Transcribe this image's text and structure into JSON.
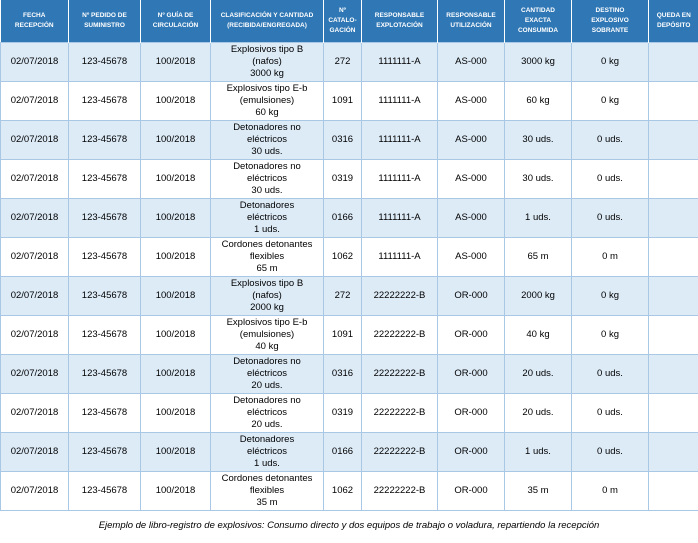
{
  "table": {
    "headers": [
      "FECHA\nRECEPCIÓN",
      "Nº PEDIDO DE\nSUMINISTRO",
      "Nº GUÍA DE\nCIRCULACIÓN",
      "CLASIFICACIÓN Y CANTIDAD\n(RECIBIDA/ENGREGADA)",
      "Nº\nCATALO-\nGACIÓN",
      "RESPONSABLE\nEXPLOTACIÓN",
      "RESPONSABLE\nUTILIZACIÓN",
      "CANTIDAD\nEXACTA\nCONSUMIDA",
      "DESTINO\nEXPLOSIVO\nSOBRANTE",
      "QUEDA EN\nDEPÓSITO"
    ],
    "rows": [
      [
        "02/07/2018",
        "123-45678",
        "100/2018",
        "Explosivos tipo B\n(nafos)\n3000 kg",
        "272",
        "1111111-A",
        "AS-000",
        "3000 kg",
        "0 kg",
        ""
      ],
      [
        "02/07/2018",
        "123-45678",
        "100/2018",
        "Explosivos tipo E-b\n(emulsiones)\n60 kg",
        "1091",
        "1111111-A",
        "AS-000",
        "60 kg",
        "0 kg",
        ""
      ],
      [
        "02/07/2018",
        "123-45678",
        "100/2018",
        "Detonadores no\neléctricos\n30 uds.",
        "0316",
        "1111111-A",
        "AS-000",
        "30 uds.",
        "0 uds.",
        ""
      ],
      [
        "02/07/2018",
        "123-45678",
        "100/2018",
        "Detonadores no\neléctricos\n30 uds.",
        "0319",
        "1111111-A",
        "AS-000",
        "30 uds.",
        "0 uds.",
        ""
      ],
      [
        "02/07/2018",
        "123-45678",
        "100/2018",
        "Detonadores\neléctricos\n1 uds.",
        "0166",
        "1111111-A",
        "AS-000",
        "1 uds.",
        "0 uds.",
        ""
      ],
      [
        "02/07/2018",
        "123-45678",
        "100/2018",
        "Cordones detonantes\nflexibles\n65 m",
        "1062",
        "1111111-A",
        "AS-000",
        "65 m",
        "0 m",
        ""
      ],
      [
        "02/07/2018",
        "123-45678",
        "100/2018",
        "Explosivos tipo B\n(nafos)\n2000 kg",
        "272",
        "22222222-B",
        "OR-000",
        "2000 kg",
        "0 kg",
        ""
      ],
      [
        "02/07/2018",
        "123-45678",
        "100/2018",
        "Explosivos tipo E-b\n(emulsiones)\n40 kg",
        "1091",
        "22222222-B",
        "OR-000",
        "40 kg",
        "0 kg",
        ""
      ],
      [
        "02/07/2018",
        "123-45678",
        "100/2018",
        "Detonadores no\neléctricos\n20 uds.",
        "0316",
        "22222222-B",
        "OR-000",
        "20 uds.",
        "0 uds.",
        ""
      ],
      [
        "02/07/2018",
        "123-45678",
        "100/2018",
        "Detonadores no\neléctricos\n20 uds.",
        "0319",
        "22222222-B",
        "OR-000",
        "20 uds.",
        "0 uds.",
        ""
      ],
      [
        "02/07/2018",
        "123-45678",
        "100/2018",
        "Detonadores\neléctricos\n1 uds.",
        "0166",
        "22222222-B",
        "OR-000",
        "1 uds.",
        "0 uds.",
        ""
      ],
      [
        "02/07/2018",
        "123-45678",
        "100/2018",
        "Cordones detonantes\nflexibles\n35 m",
        "1062",
        "22222222-B",
        "OR-000",
        "35 m",
        "0 m",
        ""
      ]
    ]
  },
  "caption": "Ejemplo de libro-registro de explosivos: Consumo directo y dos equipos de trabajo o voladura, repartiendo la recepción",
  "colors": {
    "header_bg": "#2f77b5",
    "row_band": "#ddebf7",
    "border": "#a9c8e6"
  }
}
